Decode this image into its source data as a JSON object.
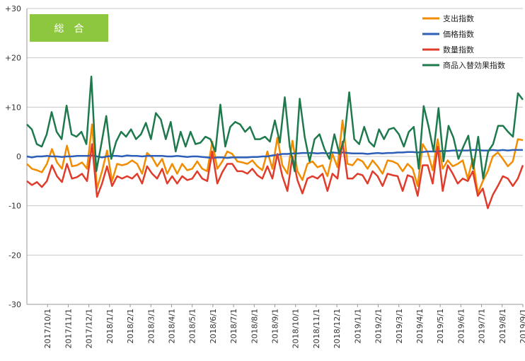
{
  "chart_data": {
    "type": "line",
    "badge": "総　合",
    "ylim": [
      -30,
      30
    ],
    "y_ticks": [
      "+30",
      "+20",
      "+10",
      "0",
      "-10",
      "-20",
      "-30"
    ],
    "y_tick_values": [
      30,
      20,
      10,
      0,
      -10,
      -20,
      -30
    ],
    "x_tick_labels": [
      "2017/10/1",
      "2017/11/1",
      "2017/12/1",
      "2018/1/1",
      "2018/2/1",
      "2018/3/1",
      "2018/4/1",
      "2018/5/1",
      "2018/6/1",
      "2018/7/1",
      "2018/8/1",
      "2018/9/1",
      "2018/10/1",
      "2018/11/1",
      "2018/12/1",
      "2019/1/1",
      "2019/2/1",
      "2019/3/1",
      "2019/4/1",
      "2019/5/1",
      "2019/6/1",
      "2019/7/1",
      "2019/8/1",
      "2019/9/1"
    ],
    "grid": "horizontal",
    "legend_position": "top-right",
    "series": [
      {
        "name": "支出指数",
        "color": "#f28c00",
        "values": [
          -1.5,
          -2.5,
          -2.8,
          -3.2,
          -1.5,
          1.5,
          -1.2,
          -2.5,
          2.2,
          -2.0,
          -1.8,
          -1.2,
          -2.5,
          6.5,
          -6.5,
          -3.0,
          1.2,
          -5.0,
          -1.5,
          -1.8,
          -1.5,
          -0.8,
          -1.5,
          -3.5,
          0.7,
          -0.2,
          -2.0,
          -0.5,
          -3.5,
          -1.5,
          -3.5,
          -1.5,
          -2.8,
          -2.5,
          -1.0,
          -2.5,
          -3.0,
          3.0,
          -2.5,
          -1.0,
          1.0,
          0.5,
          -1.0,
          -1.2,
          -1.5,
          -0.8,
          -2.0,
          -2.8,
          1.0,
          -2.5,
          3.8,
          -1.8,
          -3.5,
          3.2,
          -3.0,
          -4.8,
          -1.5,
          -1.0,
          -2.2,
          -1.8,
          -4.0,
          0.5,
          -2.2,
          7.3,
          -1.5,
          -1.8,
          -0.5,
          -1.0,
          -2.5,
          -0.8,
          -2.0,
          -3.5,
          -0.8,
          -1.0,
          -1.5,
          -3.0,
          -1.5,
          -2.5,
          -6.0,
          2.5,
          0.8,
          -2.8,
          3.5,
          -2.5,
          -0.8,
          -2.0,
          -1.5,
          -0.8,
          -4.5,
          -0.5,
          -7.5,
          -5.0,
          -3.0,
          0.0,
          0.8,
          -0.5,
          -2.0,
          -1.0,
          3.5,
          3.3
        ]
      },
      {
        "name": "価格指数",
        "color": "#2e5fb8",
        "values": [
          0.0,
          -0.2,
          0.0,
          0.0,
          0.1,
          0.0,
          0.0,
          -0.1,
          0.0,
          0.0,
          0.1,
          0.1,
          0.1,
          0.2,
          0.0,
          -0.2,
          0.0,
          0.1,
          0.1,
          0.0,
          0.2,
          0.1,
          0.1,
          0.0,
          0.1,
          0.1,
          0.1,
          0.1,
          0.0,
          0.0,
          0.1,
          0.0,
          -0.1,
          0.0,
          0.0,
          -0.1,
          -0.2,
          -0.3,
          -0.2,
          -0.2,
          -0.3,
          -0.2,
          -0.2,
          -0.2,
          -0.2,
          -0.1,
          -0.1,
          0.0,
          0.0,
          0.2,
          0.3,
          0.5,
          0.5,
          0.6,
          0.6,
          0.7,
          0.7,
          0.7,
          0.6,
          0.7,
          0.6,
          0.8,
          0.7,
          0.8,
          0.7,
          0.6,
          0.6,
          0.6,
          0.5,
          0.6,
          0.7,
          0.6,
          0.7,
          0.7,
          0.8,
          0.8,
          0.9,
          0.9,
          0.8,
          0.9,
          1.0,
          1.0,
          1.0,
          1.1,
          1.1,
          1.2,
          1.2,
          1.2,
          1.2,
          1.3,
          1.3,
          1.2,
          1.2,
          1.3,
          1.2,
          1.3,
          1.2,
          1.3,
          1.3,
          1.3
        ]
      },
      {
        "name": "数量指数",
        "color": "#e03c2c",
        "values": [
          -5.0,
          -5.8,
          -5.2,
          -6.2,
          -5.0,
          -1.8,
          -4.0,
          -5.2,
          -1.5,
          -4.5,
          -4.2,
          -3.5,
          -5.0,
          2.5,
          -8.2,
          -5.5,
          -2.0,
          -6.0,
          -4.0,
          -4.5,
          -4.0,
          -4.5,
          -3.5,
          -5.5,
          -2.0,
          -3.5,
          -4.5,
          -2.5,
          -5.5,
          -4.0,
          -5.5,
          -4.0,
          -4.8,
          -4.5,
          -3.0,
          -4.5,
          -5.0,
          1.0,
          -5.5,
          -3.2,
          -1.5,
          -1.5,
          -3.0,
          -3.0,
          -3.5,
          -2.5,
          -3.8,
          -4.5,
          -2.0,
          -4.5,
          0.5,
          -4.0,
          -7.0,
          0.0,
          -4.8,
          -7.5,
          -4.5,
          -4.0,
          -4.5,
          -3.5,
          -7.0,
          -3.5,
          -4.5,
          3.0,
          -4.5,
          -4.5,
          -3.5,
          -3.8,
          -5.5,
          -3.0,
          -4.0,
          -6.0,
          -3.5,
          -3.8,
          -4.0,
          -7.0,
          -3.8,
          -4.2,
          -8.0,
          -1.8,
          -1.8,
          -5.5,
          2.0,
          -7.0,
          -1.8,
          -3.5,
          -5.5,
          -4.5,
          -5.0,
          -3.0,
          -8.0,
          -6.5,
          -10.5,
          -7.8,
          -6.0,
          -4.0,
          -4.5,
          -6.0,
          -4.5,
          -1.8
        ]
      },
      {
        "name": "商品入替効果指数",
        "color": "#1e7a4c",
        "values": [
          6.5,
          5.5,
          2.5,
          2.0,
          4.5,
          9.0,
          5.0,
          3.5,
          10.3,
          4.5,
          4.0,
          5.0,
          2.5,
          16.2,
          -3.0,
          2.5,
          8.2,
          -0.5,
          3.0,
          5.0,
          4.0,
          5.5,
          3.5,
          4.5,
          6.8,
          3.5,
          8.8,
          7.5,
          3.5,
          7.0,
          1.0,
          5.0,
          2.0,
          5.0,
          2.5,
          2.8,
          4.0,
          3.5,
          1.0,
          10.5,
          2.0,
          6.0,
          7.0,
          6.5,
          5.0,
          6.0,
          3.5,
          3.5,
          4.0,
          3.0,
          7.3,
          2.8,
          12.0,
          2.0,
          -3.0,
          11.7,
          4.0,
          -1.0,
          3.5,
          4.5,
          1.5,
          -0.5,
          4.5,
          0.5,
          3.5,
          13.0,
          3.5,
          2.5,
          6.0,
          3.0,
          2.0,
          5.5,
          3.5,
          5.5,
          5.8,
          4.5,
          2.0,
          5.0,
          6.0,
          -2.5,
          10.2,
          6.0,
          1.0,
          9.8,
          -1.0,
          6.2,
          3.8,
          -0.5,
          2.0,
          4.2,
          -2.5,
          4.0,
          -4.5,
          1.0,
          2.5,
          6.2,
          6.2,
          5.0,
          4.0,
          12.8,
          11.5
        ]
      }
    ]
  }
}
